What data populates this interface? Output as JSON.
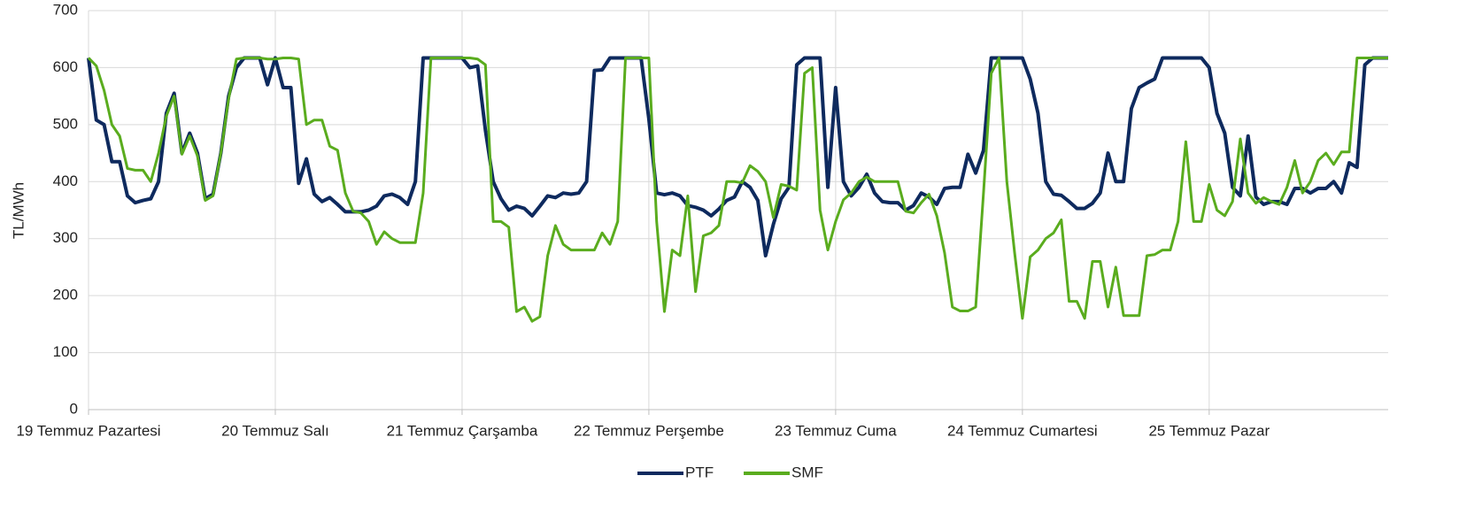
{
  "chart_data": {
    "type": "line",
    "ylabel": "TL/MWh",
    "categories": [
      "19 Temmuz Pazartesi",
      null,
      null,
      null,
      null,
      null,
      null,
      null,
      null,
      null,
      null,
      null,
      null,
      null,
      null,
      null,
      null,
      null,
      null,
      null,
      null,
      null,
      null,
      null,
      "20 Temmuz Salı",
      null,
      null,
      null,
      null,
      null,
      null,
      null,
      null,
      null,
      null,
      null,
      null,
      null,
      null,
      null,
      null,
      null,
      null,
      null,
      null,
      null,
      null,
      null,
      "21 Temmuz Çarşamba",
      null,
      null,
      null,
      null,
      null,
      null,
      null,
      null,
      null,
      null,
      null,
      null,
      null,
      null,
      null,
      null,
      null,
      null,
      null,
      null,
      null,
      null,
      null,
      "22 Temmuz Perşembe",
      null,
      null,
      null,
      null,
      null,
      null,
      null,
      null,
      null,
      null,
      null,
      null,
      null,
      null,
      null,
      null,
      null,
      null,
      null,
      null,
      null,
      null,
      null,
      "23 Temmuz Cuma",
      null,
      null,
      null,
      null,
      null,
      null,
      null,
      null,
      null,
      null,
      null,
      null,
      null,
      null,
      null,
      null,
      null,
      null,
      null,
      null,
      null,
      null,
      null,
      "24 Temmuz Cumartesi",
      null,
      null,
      null,
      null,
      null,
      null,
      null,
      null,
      null,
      null,
      null,
      null,
      null,
      null,
      null,
      null,
      null,
      null,
      null,
      null,
      null,
      null,
      null,
      "25 Temmuz Pazar",
      null,
      null,
      null,
      null,
      null,
      null,
      null,
      null,
      null,
      null,
      null,
      null,
      null,
      null,
      null,
      null,
      null,
      null,
      null,
      null,
      null,
      null,
      null
    ],
    "series": [
      {
        "name": "PTF",
        "color": "#0e2a5e",
        "values": [
          617,
          508,
          500,
          435,
          435,
          375,
          363,
          367,
          370,
          400,
          520,
          555,
          450,
          485,
          450,
          370,
          378,
          450,
          550,
          600,
          617,
          617,
          617,
          570,
          617,
          565,
          565,
          397,
          440,
          378,
          365,
          372,
          360,
          347,
          347,
          347,
          350,
          357,
          375,
          378,
          372,
          360,
          400,
          617,
          617,
          617,
          617,
          617,
          617,
          600,
          603,
          490,
          400,
          370,
          350,
          357,
          353,
          340,
          357,
          375,
          372,
          380,
          378,
          380,
          400,
          595,
          596,
          617,
          617,
          617,
          617,
          617,
          510,
          380,
          377,
          380,
          375,
          358,
          355,
          350,
          340,
          352,
          367,
          373,
          400,
          390,
          367,
          270,
          325,
          370,
          390,
          605,
          617,
          617,
          617,
          390,
          565,
          400,
          375,
          390,
          413,
          380,
          365,
          363,
          363,
          350,
          358,
          380,
          373,
          360,
          388,
          390,
          390,
          448,
          415,
          455,
          617,
          617,
          617,
          617,
          617,
          580,
          520,
          400,
          378,
          376,
          365,
          353,
          353,
          362,
          380,
          450,
          400,
          400,
          528,
          565,
          573,
          580,
          617,
          617,
          617,
          617,
          617,
          617,
          600,
          520,
          485,
          390,
          375,
          480,
          373,
          360,
          365,
          365,
          360,
          388,
          388,
          380,
          388,
          388,
          400,
          380,
          433,
          425,
          605,
          617,
          617,
          617
        ]
      },
      {
        "name": "SMF",
        "color": "#5aac1e",
        "values": [
          617,
          603,
          560,
          500,
          480,
          423,
          420,
          420,
          400,
          450,
          515,
          550,
          448,
          480,
          445,
          367,
          375,
          450,
          545,
          615,
          617,
          617,
          617,
          615,
          615,
          617,
          617,
          615,
          500,
          508,
          508,
          462,
          455,
          380,
          348,
          345,
          330,
          290,
          312,
          300,
          293,
          293,
          293,
          380,
          617,
          617,
          617,
          617,
          617,
          617,
          615,
          605,
          330,
          330,
          320,
          172,
          180,
          155,
          163,
          270,
          323,
          290,
          280,
          280,
          280,
          280,
          310,
          290,
          330,
          617,
          617,
          617,
          617,
          330,
          172,
          280,
          270,
          375,
          207,
          305,
          310,
          323,
          400,
          400,
          398,
          428,
          418,
          400,
          337,
          395,
          392,
          385,
          590,
          600,
          350,
          280,
          330,
          368,
          380,
          400,
          408,
          400,
          400,
          400,
          400,
          348,
          345,
          363,
          378,
          340,
          275,
          180,
          173,
          173,
          180,
          380,
          590,
          617,
          400,
          275,
          160,
          268,
          280,
          300,
          310,
          333,
          190,
          190,
          160,
          260,
          260,
          180,
          250,
          165,
          165,
          165,
          270,
          272,
          280,
          280,
          330,
          470,
          330,
          330,
          395,
          350,
          340,
          365,
          475,
          380,
          362,
          372,
          365,
          360,
          390,
          437,
          380,
          400,
          437,
          450,
          430,
          452,
          452,
          617,
          617,
          617,
          617,
          617
        ]
      }
    ],
    "ylim": [
      0,
      700
    ],
    "yticks": [
      0,
      100,
      200,
      300,
      400,
      500,
      600,
      700
    ],
    "grid": true,
    "legend": "bottom"
  }
}
